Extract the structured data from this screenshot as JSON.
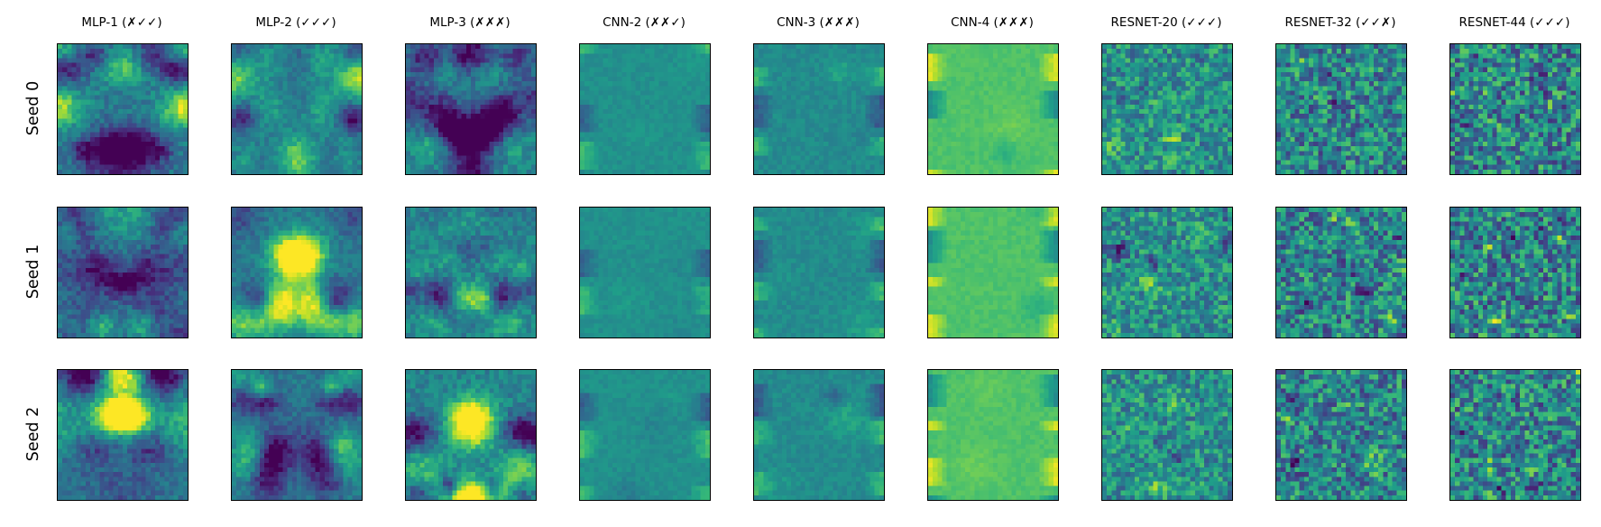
{
  "figure": {
    "columns": [
      {
        "label": "MLP-1 (✗✓✓)"
      },
      {
        "label": "MLP-2 (✓✓✓)"
      },
      {
        "label": "MLP-3 (✗✗✗)"
      },
      {
        "label": "CNN-2 (✗✗✓)"
      },
      {
        "label": "CNN-3 (✗✗✗)"
      },
      {
        "label": "CNN-4 (✗✗✗)"
      },
      {
        "label": "RESNET-20 (✓✓✓)"
      },
      {
        "label": "RESNET-32 (✓✓✗)"
      },
      {
        "label": "RESNET-44 (✓✓✓)"
      }
    ],
    "rows": [
      {
        "label": "Seed 0"
      },
      {
        "label": "Seed 1"
      },
      {
        "label": "Seed 2"
      }
    ],
    "colormap": "viridis"
  }
}
